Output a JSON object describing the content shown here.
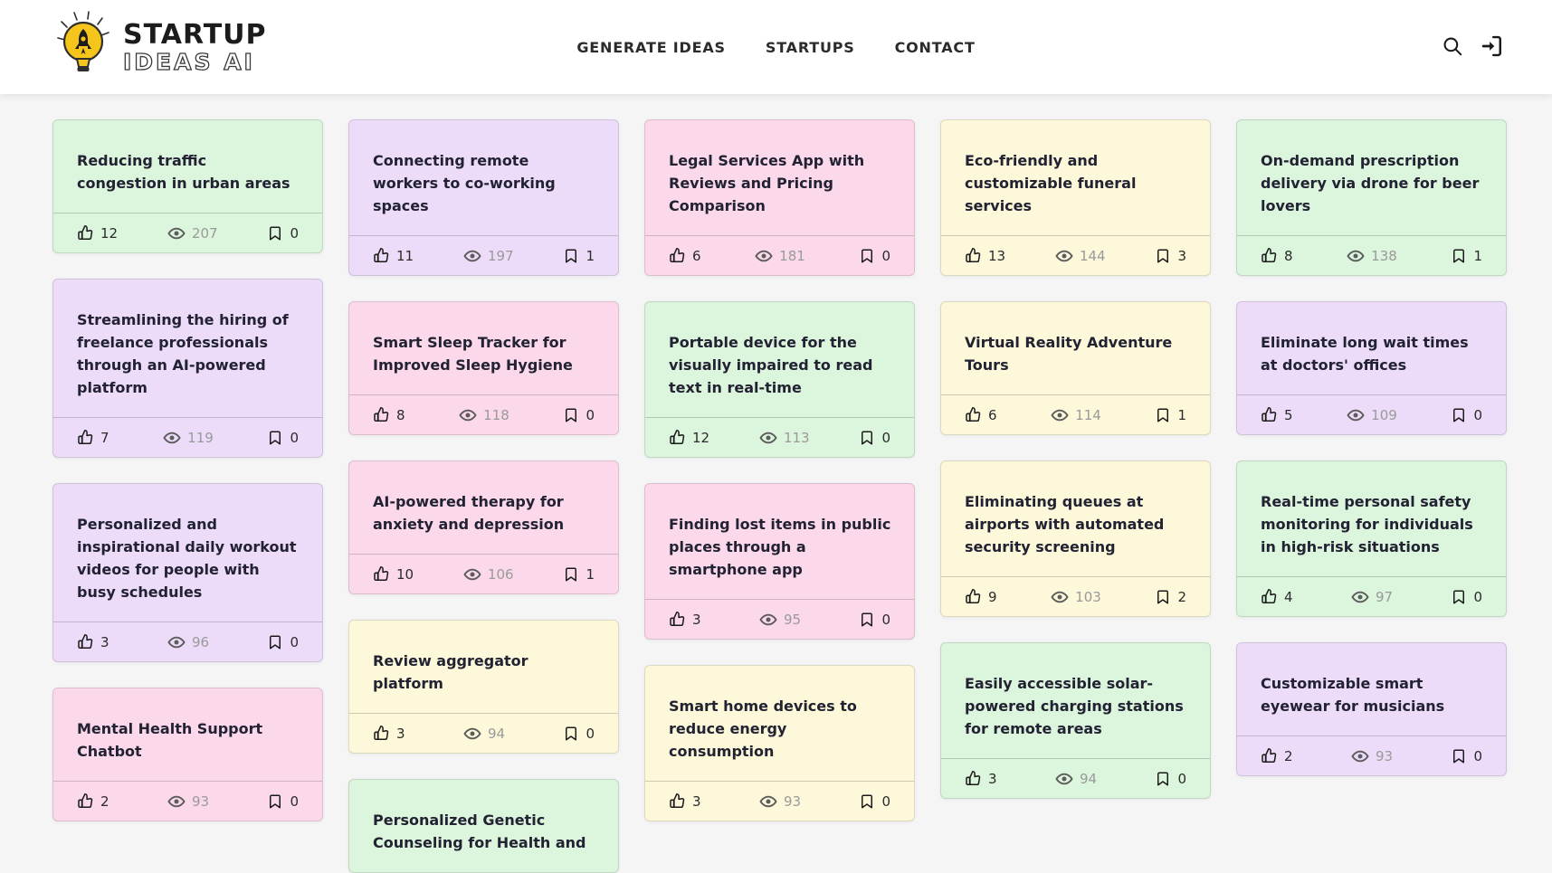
{
  "header": {
    "logo": {
      "title": "STARTUP",
      "subtitle": "IDEAS AI",
      "icon": "lightbulb-rocket-icon"
    },
    "nav": {
      "items": [
        {
          "label": "GENERATE IDEAS"
        },
        {
          "label": "STARTUPS"
        },
        {
          "label": "CONTACT"
        }
      ]
    },
    "actions": {
      "search_icon": "search-icon",
      "login_icon": "login-icon"
    }
  },
  "theme": {
    "colors": {
      "page_bg": "#f5f5f6",
      "header_bg": "#ffffff",
      "card_green": "#dcf5dd",
      "card_purple": "#ecdcf9",
      "card_pink": "#fbd9ea",
      "card_yellow": "#fcf8d9",
      "title_text": "#222233",
      "muted_text": "#9a9a9a",
      "dark_text": "#2b2b2b",
      "logo_yellow": "#f6c51c"
    }
  },
  "stats_icons": {
    "likes": "thumbs-up-icon",
    "views": "eye-icon",
    "bookmarks": "bookmark-icon"
  },
  "board": {
    "columns": [
      [
        {
          "title": "Reducing traffic congestion in urban areas",
          "color": "green",
          "likes": 12,
          "views": 207,
          "bookmarks": 0
        },
        {
          "title": "Streamlining the hiring of freelance professionals through an AI-powered platform",
          "color": "purple",
          "likes": 7,
          "views": 119,
          "bookmarks": 0
        },
        {
          "title": "Personalized and inspirational daily workout videos for people with busy schedules",
          "color": "purple",
          "likes": 3,
          "views": 96,
          "bookmarks": 0
        },
        {
          "title": "Mental Health Support Chatbot",
          "color": "pink",
          "likes": 2,
          "views": 93,
          "bookmarks": 0
        }
      ],
      [
        {
          "title": "Connecting remote workers to co-working spaces",
          "color": "purple",
          "likes": 11,
          "views": 197,
          "bookmarks": 1
        },
        {
          "title": "Smart Sleep Tracker for Improved Sleep Hygiene",
          "color": "pink",
          "likes": 8,
          "views": 118,
          "bookmarks": 0
        },
        {
          "title": "AI-powered therapy for anxiety and depression",
          "color": "pink",
          "likes": 10,
          "views": 106,
          "bookmarks": 1
        },
        {
          "title": "Review aggregator platform",
          "color": "yellow",
          "likes": 3,
          "views": 94,
          "bookmarks": 0
        },
        {
          "title": "Personalized Genetic Counseling for Health and",
          "color": "green",
          "likes": null,
          "views": null,
          "bookmarks": null
        }
      ],
      [
        {
          "title": "Legal Services App with Reviews and Pricing Comparison",
          "color": "pink",
          "likes": 6,
          "views": 181,
          "bookmarks": 0
        },
        {
          "title": "Portable device for the visually impaired to read text in real-time",
          "color": "green",
          "likes": 12,
          "views": 113,
          "bookmarks": 0
        },
        {
          "title": "Finding lost items in public places through a smartphone app",
          "color": "pink",
          "likes": 3,
          "views": 95,
          "bookmarks": 0
        },
        {
          "title": "Smart home devices to reduce energy consumption",
          "color": "yellow",
          "likes": 3,
          "views": 93,
          "bookmarks": 0
        }
      ],
      [
        {
          "title": "Eco-friendly and customizable funeral services",
          "color": "yellow",
          "likes": 13,
          "views": 144,
          "bookmarks": 3
        },
        {
          "title": "Virtual Reality Adventure Tours",
          "color": "yellow",
          "likes": 6,
          "views": 114,
          "bookmarks": 1
        },
        {
          "title": "Eliminating queues at airports with automated security screening",
          "color": "yellow",
          "likes": 9,
          "views": 103,
          "bookmarks": 2
        },
        {
          "title": "Easily accessible solar-powered charging stations for remote areas",
          "color": "green",
          "likes": 3,
          "views": 94,
          "bookmarks": 0
        }
      ],
      [
        {
          "title": "On-demand prescription delivery via drone for beer lovers",
          "color": "green",
          "likes": 8,
          "views": 138,
          "bookmarks": 1
        },
        {
          "title": "Eliminate long wait times at doctors' offices",
          "color": "purple",
          "likes": 5,
          "views": 109,
          "bookmarks": 0
        },
        {
          "title": "Real-time personal safety monitoring for individuals in high-risk situations",
          "color": "green",
          "likes": 4,
          "views": 97,
          "bookmarks": 0
        },
        {
          "title": "Customizable smart eyewear for musicians",
          "color": "purple",
          "likes": 2,
          "views": 93,
          "bookmarks": 0
        }
      ]
    ]
  }
}
